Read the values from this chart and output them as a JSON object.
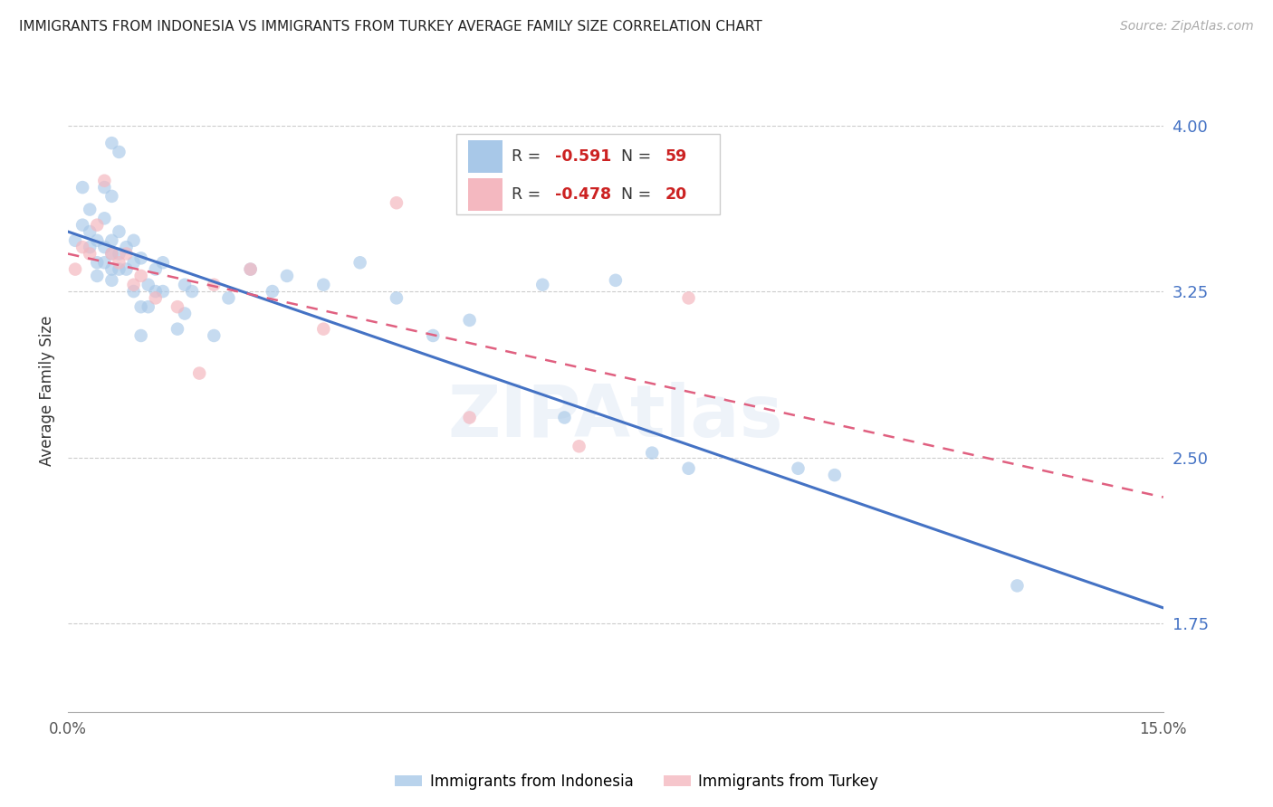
{
  "title": "IMMIGRANTS FROM INDONESIA VS IMMIGRANTS FROM TURKEY AVERAGE FAMILY SIZE CORRELATION CHART",
  "source": "Source: ZipAtlas.com",
  "ylabel": "Average Family Size",
  "right_yticks": [
    4.0,
    3.25,
    2.5,
    1.75
  ],
  "xlim": [
    0.0,
    0.15
  ],
  "ylim": [
    1.35,
    4.25
  ],
  "indonesia_R": -0.591,
  "indonesia_N": 59,
  "turkey_R": -0.478,
  "turkey_N": 20,
  "indonesia_color": "#a8c8e8",
  "turkey_color": "#f4b8c0",
  "indonesia_line_color": "#4472c4",
  "turkey_line_color": "#e06080",
  "watermark": "ZIPAtlas",
  "indonesia_line": [
    [
      0.0,
      3.52
    ],
    [
      0.15,
      1.82
    ]
  ],
  "turkey_line": [
    [
      0.0,
      3.42
    ],
    [
      0.15,
      2.32
    ]
  ],
  "indonesia_points": [
    [
      0.001,
      3.48
    ],
    [
      0.002,
      3.72
    ],
    [
      0.002,
      3.55
    ],
    [
      0.003,
      3.62
    ],
    [
      0.003,
      3.52
    ],
    [
      0.003,
      3.45
    ],
    [
      0.004,
      3.48
    ],
    [
      0.004,
      3.38
    ],
    [
      0.004,
      3.32
    ],
    [
      0.005,
      3.72
    ],
    [
      0.005,
      3.58
    ],
    [
      0.005,
      3.45
    ],
    [
      0.005,
      3.38
    ],
    [
      0.006,
      3.92
    ],
    [
      0.006,
      3.68
    ],
    [
      0.006,
      3.48
    ],
    [
      0.006,
      3.42
    ],
    [
      0.006,
      3.35
    ],
    [
      0.006,
      3.3
    ],
    [
      0.007,
      3.88
    ],
    [
      0.007,
      3.52
    ],
    [
      0.007,
      3.42
    ],
    [
      0.007,
      3.35
    ],
    [
      0.008,
      3.45
    ],
    [
      0.008,
      3.35
    ],
    [
      0.009,
      3.48
    ],
    [
      0.009,
      3.38
    ],
    [
      0.009,
      3.25
    ],
    [
      0.01,
      3.4
    ],
    [
      0.01,
      3.18
    ],
    [
      0.01,
      3.05
    ],
    [
      0.011,
      3.28
    ],
    [
      0.011,
      3.18
    ],
    [
      0.012,
      3.35
    ],
    [
      0.012,
      3.25
    ],
    [
      0.013,
      3.38
    ],
    [
      0.013,
      3.25
    ],
    [
      0.015,
      3.08
    ],
    [
      0.016,
      3.28
    ],
    [
      0.016,
      3.15
    ],
    [
      0.017,
      3.25
    ],
    [
      0.02,
      3.05
    ],
    [
      0.022,
      3.22
    ],
    [
      0.025,
      3.35
    ],
    [
      0.028,
      3.25
    ],
    [
      0.03,
      3.32
    ],
    [
      0.035,
      3.28
    ],
    [
      0.04,
      3.38
    ],
    [
      0.045,
      3.22
    ],
    [
      0.05,
      3.05
    ],
    [
      0.055,
      3.12
    ],
    [
      0.065,
      3.28
    ],
    [
      0.068,
      2.68
    ],
    [
      0.075,
      3.3
    ],
    [
      0.08,
      2.52
    ],
    [
      0.085,
      2.45
    ],
    [
      0.1,
      2.45
    ],
    [
      0.105,
      2.42
    ],
    [
      0.13,
      1.92
    ]
  ],
  "turkey_points": [
    [
      0.001,
      3.35
    ],
    [
      0.002,
      3.45
    ],
    [
      0.003,
      3.42
    ],
    [
      0.004,
      3.55
    ],
    [
      0.005,
      3.75
    ],
    [
      0.006,
      3.42
    ],
    [
      0.007,
      3.38
    ],
    [
      0.008,
      3.42
    ],
    [
      0.009,
      3.28
    ],
    [
      0.01,
      3.32
    ],
    [
      0.012,
      3.22
    ],
    [
      0.015,
      3.18
    ],
    [
      0.018,
      2.88
    ],
    [
      0.02,
      3.28
    ],
    [
      0.025,
      3.35
    ],
    [
      0.035,
      3.08
    ],
    [
      0.045,
      3.65
    ],
    [
      0.055,
      2.68
    ],
    [
      0.07,
      2.55
    ],
    [
      0.085,
      3.22
    ]
  ]
}
